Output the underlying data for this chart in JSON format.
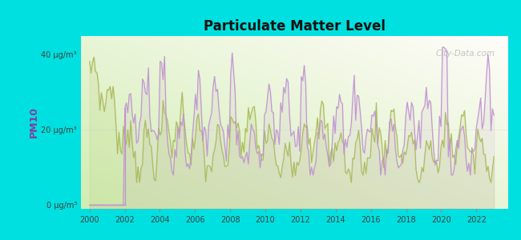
{
  "title": "Particulate Matter Level",
  "ylabel": "PM10",
  "ytick_labels": [
    "0 μg/m³",
    "20 μg/m³",
    "40 μg/m³"
  ],
  "ytick_values": [
    0,
    20,
    40
  ],
  "ylim": [
    -1,
    45
  ],
  "xlim": [
    1999.5,
    2023.8
  ],
  "xtick_values": [
    2000,
    2002,
    2004,
    2006,
    2008,
    2010,
    2012,
    2014,
    2016,
    2018,
    2020,
    2022
  ],
  "background_outer": "#00e0e0",
  "background_plot_color": "#d8edb8",
  "lynnview_color": "#c090d0",
  "us_color": "#aab858",
  "legend_marker_lynnview": "#d878b8",
  "legend_marker_us": "#b8b858",
  "watermark": "City-Data.com",
  "watermark_color": "#a8b8a8",
  "seed": 7
}
